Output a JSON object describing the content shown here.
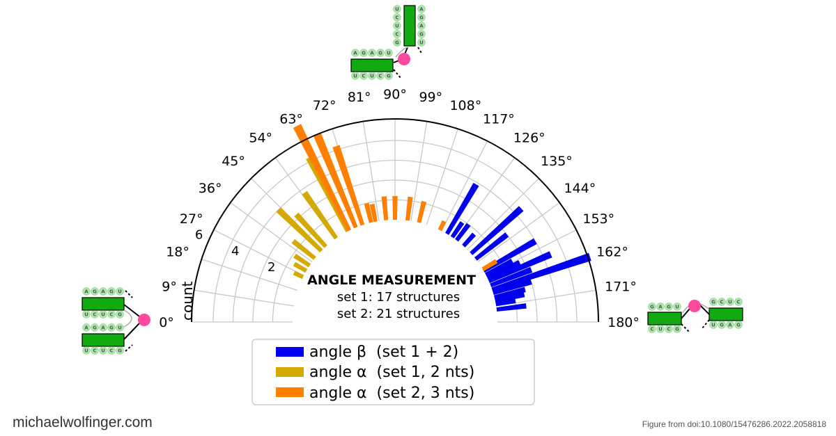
{
  "chart_data": {
    "type": "polar-bar",
    "title": "ANGLE MEASUREMENT",
    "subtitle_lines": [
      "set 1: 17 structures",
      "set 2: 21 structures"
    ],
    "radial_label": "count",
    "radial_ticks": [
      "2",
      "4",
      "6"
    ],
    "angle_range": [
      0,
      180
    ],
    "angle_ticks": [
      "0°",
      "9°",
      "18°",
      "27°",
      "36°",
      "45°",
      "54°",
      "63°",
      "72°",
      "81°",
      "90°",
      "99°",
      "108°",
      "117°",
      "126°",
      "135°",
      "144°",
      "153°",
      "162°",
      "171°",
      "180°"
    ],
    "grid": true,
    "legend_position": "bottom-center",
    "series": [
      {
        "name": "angle β  (set 1 + 2)",
        "color": "#0000ee",
        "bins": [
          {
            "angle": 120.5,
            "value": 2.9
          },
          {
            "angle": 124.0,
            "value": 0.9
          },
          {
            "angle": 127.0,
            "value": 1.0
          },
          {
            "angle": 132.0,
            "value": 0.8
          },
          {
            "angle": 138.0,
            "value": 3.4
          },
          {
            "angle": 142.0,
            "value": 2.0
          },
          {
            "angle": 150.0,
            "value": 3.0
          },
          {
            "angle": 152.5,
            "value": 1.5
          },
          {
            "angle": 154.5,
            "value": 1.8
          },
          {
            "angle": 156.5,
            "value": 3.4
          },
          {
            "angle": 159.0,
            "value": 2.2
          },
          {
            "angle": 161.5,
            "value": 5.2
          },
          {
            "angle": 163.5,
            "value": 2.0
          },
          {
            "angle": 166.0,
            "value": 1.6
          },
          {
            "angle": 168.0,
            "value": 1.5
          },
          {
            "angle": 170.0,
            "value": 1.0
          },
          {
            "angle": 173.0,
            "value": 1.5
          }
        ]
      },
      {
        "name": "angle α  (set 1, 2 nts)",
        "color": "#d4aa00",
        "bins": [
          {
            "angle": 26.0,
            "value": 0.5
          },
          {
            "angle": 30.0,
            "value": 0.7
          },
          {
            "angle": 33.5,
            "value": 0.9
          },
          {
            "angle": 38.5,
            "value": 1.4
          },
          {
            "angle": 44.0,
            "value": 3.0
          },
          {
            "angle": 47.5,
            "value": 2.2
          },
          {
            "angle": 55.0,
            "value": 2.8
          },
          {
            "angle": 62.5,
            "value": 4.2
          },
          {
            "angle": 67.5,
            "value": 4.8
          }
        ]
      },
      {
        "name": "angle α  (set 2, 3 nts)",
        "color": "#ff8000",
        "bins": [
          {
            "angle": 63.5,
            "value": 5.9
          },
          {
            "angle": 67.5,
            "value": 5.1
          },
          {
            "angle": 71.5,
            "value": 4.2
          },
          {
            "angle": 76.5,
            "value": 1.0
          },
          {
            "angle": 79.0,
            "value": 0.9
          },
          {
            "angle": 85.0,
            "value": 1.2
          },
          {
            "angle": 90.0,
            "value": 1.2
          },
          {
            "angle": 97.0,
            "value": 1.2
          },
          {
            "angle": 103.5,
            "value": 1.1
          },
          {
            "angle": 116.0,
            "value": 0.5
          },
          {
            "angle": 149.0,
            "value": 0.8
          }
        ]
      }
    ],
    "legend": [
      {
        "label": "angle β  (set 1 + 2)",
        "color": "#0000ee"
      },
      {
        "label": "angle α  (set 1, 2 nts)",
        "color": "#d4aa00"
      },
      {
        "label": "angle α  (set 2, 3 nts)",
        "color": "#ff8000"
      }
    ]
  },
  "diagram_letters": {
    "top_left_top": [
      "A",
      "G",
      "A",
      "G",
      "U"
    ],
    "top_left_bottom": [
      "U",
      "C",
      "U",
      "C",
      "G"
    ],
    "top_vertical_left": [
      "U",
      "C",
      "U",
      "C",
      "G"
    ],
    "top_vertical_right": [
      "A",
      "G",
      "A",
      "G",
      "U"
    ],
    "left_top_top": [
      "A",
      "G",
      "A",
      "G",
      "U"
    ],
    "left_top_bottom": [
      "U",
      "C",
      "U",
      "C",
      "G"
    ],
    "left_bottom_top": [
      "A",
      "G",
      "A",
      "G",
      "U"
    ],
    "left_bottom_bottom": [
      "U",
      "C",
      "U",
      "C",
      "G"
    ],
    "right_left_top": [
      "G",
      "A",
      "G",
      "U"
    ],
    "right_left_bottom": [
      "C",
      "U",
      "C",
      "G"
    ],
    "right_right_top": [
      "G",
      "C",
      "U",
      "C"
    ],
    "right_right_bottom": [
      "U",
      "G",
      "A",
      "G"
    ]
  },
  "footer": {
    "site": "michaelwolfinger.com",
    "credit": "Figure from doi:10.1080/15476286.2022.2058818"
  }
}
